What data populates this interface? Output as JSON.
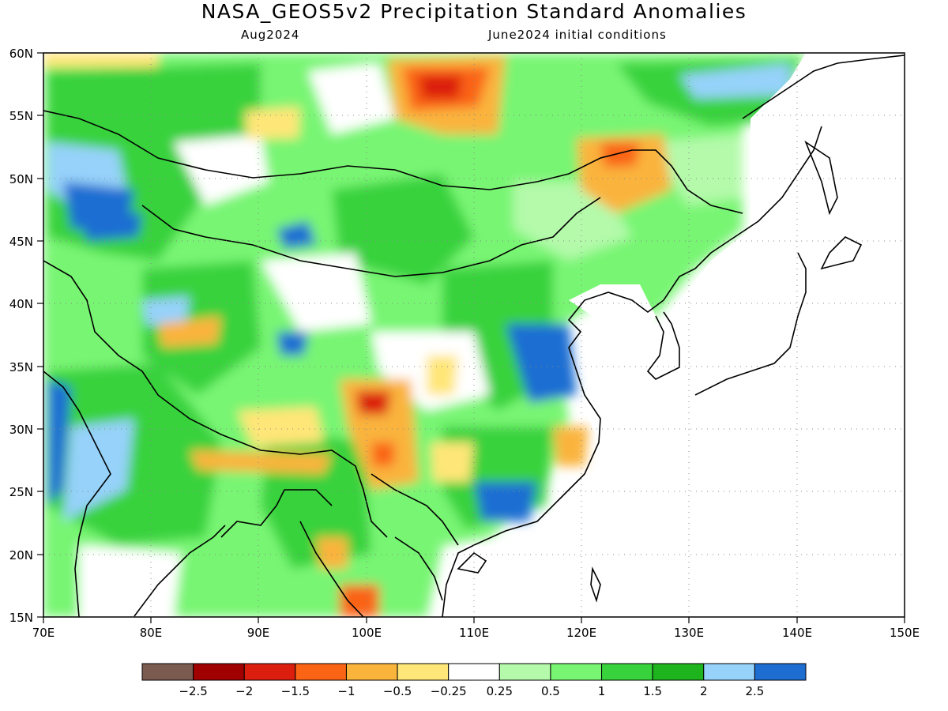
{
  "title": "NASA_GEOS5v2 Precipitation Standard Anomalies",
  "subtitle_left": "Aug2024",
  "subtitle_right": "June2024 initial conditions",
  "lon_labels": [
    "70E",
    "80E",
    "90E",
    "100E",
    "110E",
    "120E",
    "130E",
    "140E",
    "150E"
  ],
  "lat_labels": [
    "60N",
    "55N",
    "50N",
    "45N",
    "40N",
    "35N",
    "30N",
    "25N",
    "20N",
    "15N"
  ],
  "legend": {
    "colors": [
      "#7b5a4f",
      "#a00000",
      "#dc1e0e",
      "#fa6414",
      "#fab43c",
      "#ffe678",
      "#ffffff",
      "#b4faaa",
      "#78f573",
      "#37d23c",
      "#1eb41e",
      "#96d2fa",
      "#1e6ed2"
    ],
    "labels": [
      "−2.5",
      "−2",
      "−1.5",
      "−1",
      "−0.5",
      "−0.25",
      "0.25",
      "0.5",
      "1",
      "1.5",
      "2",
      "2.5"
    ]
  }
}
